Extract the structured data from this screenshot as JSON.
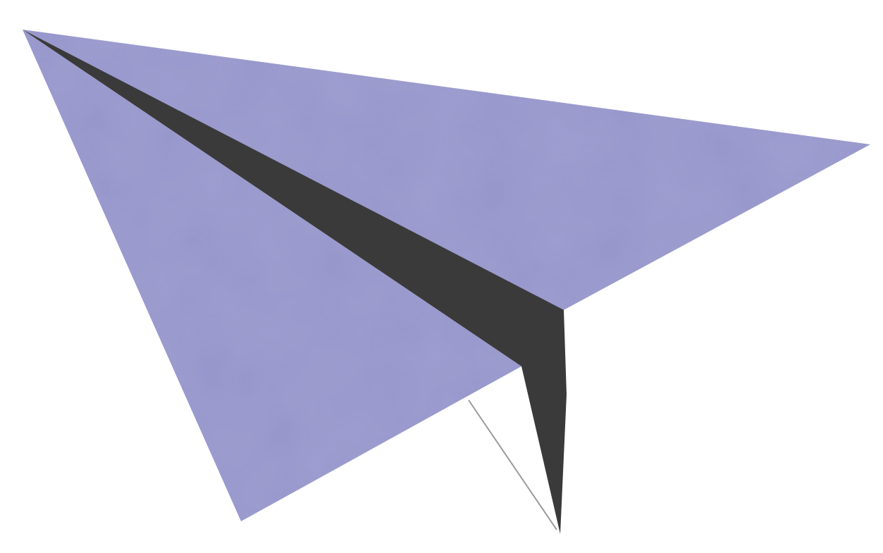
{
  "illustration": {
    "subject": "paper-plane",
    "colors": {
      "background": "#ffffff",
      "wing": "#9796cc",
      "wing_texture": "#8b8ac2",
      "fold": "#3a3a3a",
      "fold_highlight": "#4a4a4a",
      "tail_line": "#9a9a9a"
    }
  }
}
